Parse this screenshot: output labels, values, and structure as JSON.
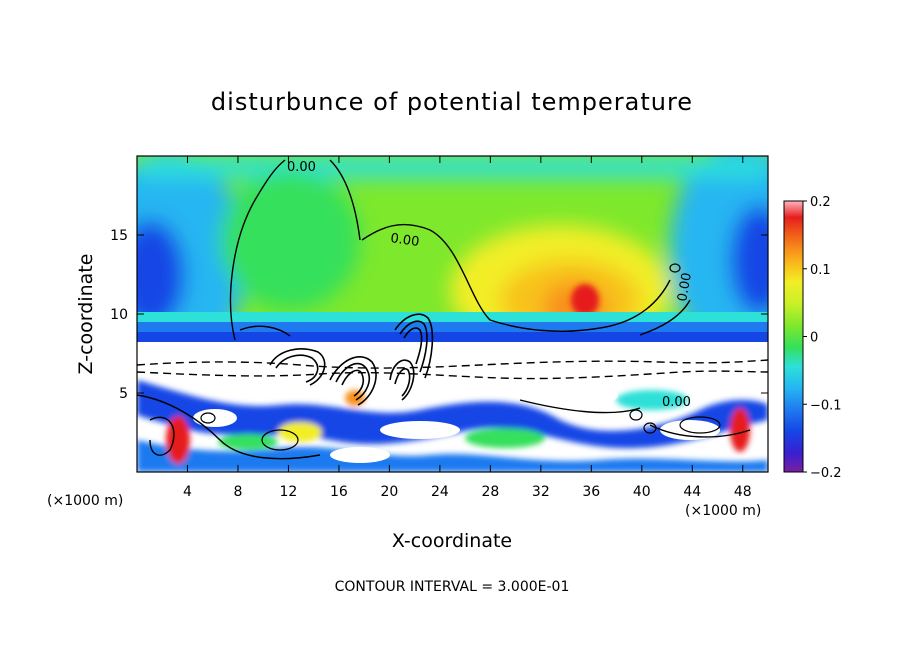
{
  "chart_data": {
    "type": "heatmap",
    "title": "disturbunce of potential temperature",
    "xlabel": "X-coordinate",
    "ylabel": "Z-coordinate",
    "x_unit": "(×1000 m)",
    "y_unit": "(×1000 m)",
    "xlim": [
      0,
      50
    ],
    "ylim": [
      0,
      20
    ],
    "x_ticks": [
      "4",
      "8",
      "12",
      "16",
      "20",
      "24",
      "28",
      "32",
      "36",
      "40",
      "44",
      "48"
    ],
    "y_ticks": [
      "5",
      "10",
      "15"
    ],
    "colorbar": {
      "range": [
        -0.2,
        0.2
      ],
      "tick_labels": [
        "0.2",
        "0.1",
        "0",
        "−0.1",
        "−0.2"
      ]
    },
    "contour_labels": [
      "0.00",
      "0.00",
      "0.00",
      "0.00"
    ],
    "footer": "CONTOUR INTERVAL = 3.000E-01",
    "grid": false
  },
  "colors": {
    "background": "#ffffff",
    "palette": [
      "#7b1fa2",
      "#3a1fd0",
      "#1446e6",
      "#1f7af0",
      "#25b6f2",
      "#2de0d8",
      "#33e6a6",
      "#34e05c",
      "#7ee82c",
      "#c8f028",
      "#f2ee26",
      "#f8c21c",
      "#f8901a",
      "#f05a18",
      "#e61e1e",
      "#ff8a96",
      "#ffb6c0"
    ]
  }
}
